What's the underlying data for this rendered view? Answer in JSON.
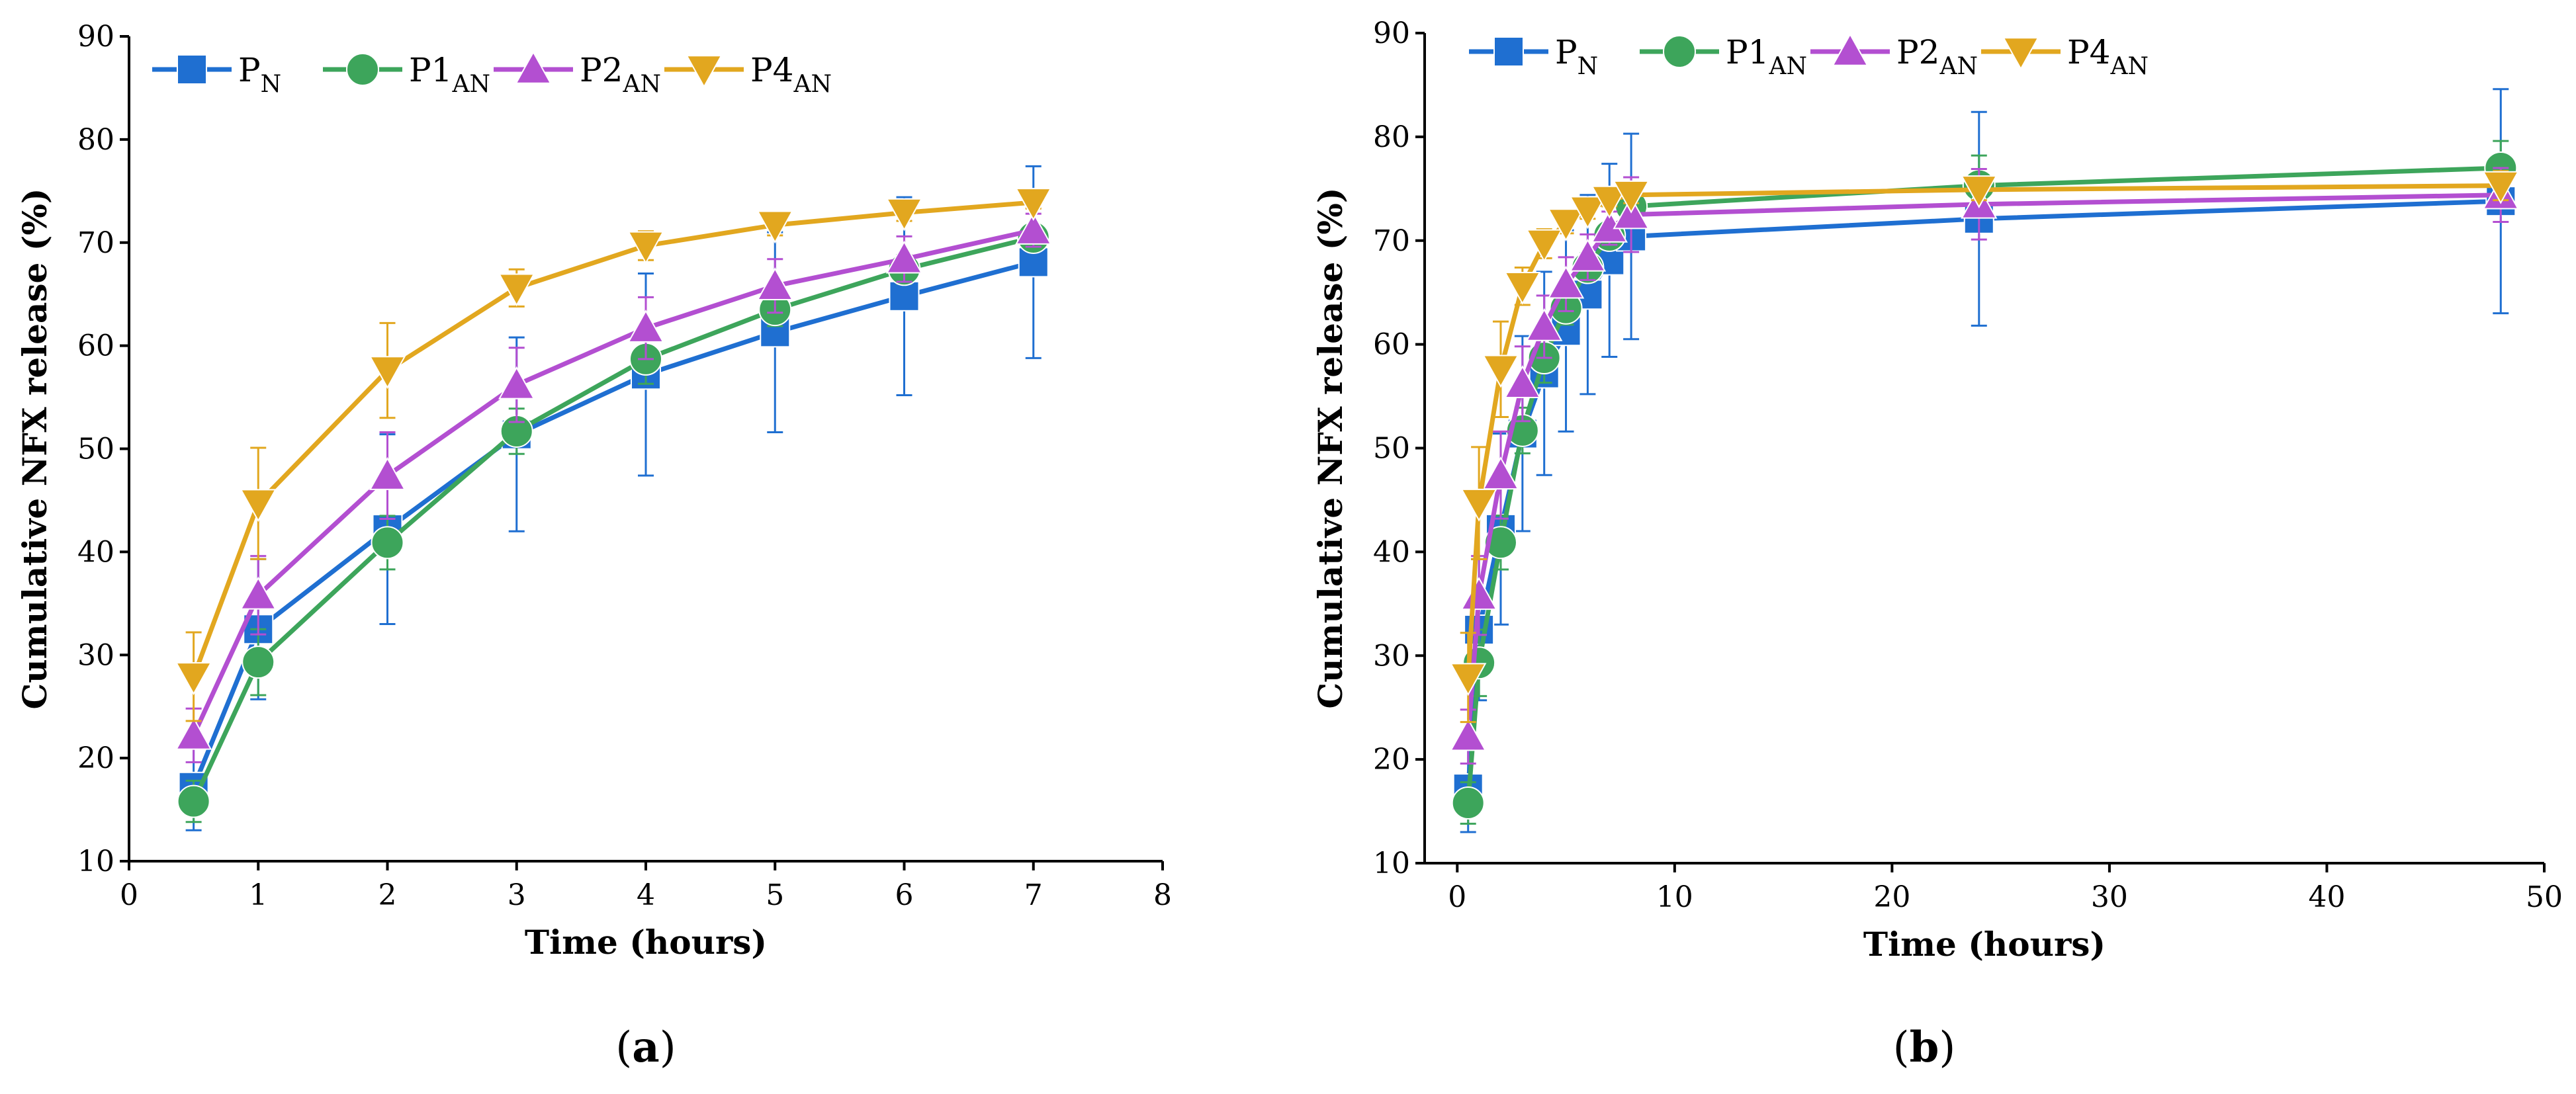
{
  "chart_data": [
    {
      "type": "line",
      "panel": "a",
      "panel_label": "(a)",
      "xlabel": "Time (hours)",
      "ylabel": "Cumulative NFX release (%)",
      "xlim": [
        0,
        8
      ],
      "ylim": [
        10,
        90
      ],
      "xticks": [
        0,
        1,
        2,
        3,
        4,
        5,
        6,
        7,
        8
      ],
      "yticks": [
        10,
        20,
        30,
        40,
        50,
        60,
        70,
        80,
        90
      ],
      "x": [
        0.5,
        1,
        2,
        3,
        4,
        5,
        6,
        7
      ],
      "legend_position": "top-left",
      "series": [
        {
          "name": "P",
          "sub": "N",
          "color": "#1f6fd1",
          "marker": "square",
          "values": [
            17.2,
            32.5,
            42.2,
            51.4,
            57.2,
            61.3,
            64.8,
            68.1
          ],
          "errors": [
            4.2,
            6.8,
            9.2,
            9.4,
            9.8,
            9.7,
            9.6,
            9.3
          ]
        },
        {
          "name": "P1",
          "sub": "AN",
          "color": "#3da55b",
          "marker": "circle",
          "values": [
            15.8,
            29.3,
            40.9,
            51.7,
            58.7,
            63.5,
            67.4,
            70.5
          ],
          "errors": [
            2.0,
            3.2,
            2.6,
            2.2,
            2.4,
            1.6,
            1.4,
            1.0
          ]
        },
        {
          "name": "P2",
          "sub": "AN",
          "color": "#b34fd1",
          "marker": "triangle-up",
          "values": [
            22.2,
            35.8,
            47.4,
            56.2,
            61.7,
            65.8,
            68.4,
            71.2
          ],
          "errors": [
            2.6,
            3.8,
            4.2,
            3.6,
            3.0,
            2.6,
            2.2,
            1.6
          ]
        },
        {
          "name": "P4",
          "sub": "AN",
          "color": "#e2a71f",
          "marker": "triangle-down",
          "values": [
            27.9,
            44.7,
            57.6,
            65.6,
            69.7,
            71.7,
            72.9,
            73.9
          ],
          "errors": [
            4.3,
            5.4,
            4.6,
            1.8,
            1.4,
            1.0,
            0.8,
            0.6
          ]
        }
      ]
    },
    {
      "type": "line",
      "panel": "b",
      "panel_label": "(b)",
      "xlabel": "Time (hours)",
      "ylabel": "Cumulative NFX release (%)",
      "xlim": [
        -1.5,
        50
      ],
      "ylim": [
        10,
        90
      ],
      "xticks": [
        0,
        10,
        20,
        30,
        40,
        50
      ],
      "yticks": [
        10,
        20,
        30,
        40,
        50,
        60,
        70,
        80,
        90
      ],
      "x": [
        0.5,
        1,
        2,
        3,
        4,
        5,
        6,
        7,
        8,
        24,
        48
      ],
      "legend_position": "top-left",
      "series": [
        {
          "name": "P",
          "sub": "N",
          "color": "#1f6fd1",
          "marker": "square",
          "values": [
            17.2,
            32.5,
            42.2,
            51.4,
            57.2,
            61.3,
            64.8,
            68.1,
            70.4,
            72.1,
            73.8
          ],
          "errors": [
            4.2,
            6.8,
            9.2,
            9.4,
            9.8,
            9.7,
            9.6,
            9.3,
            9.9,
            10.3,
            10.8
          ]
        },
        {
          "name": "P1",
          "sub": "AN",
          "color": "#3da55b",
          "marker": "circle",
          "values": [
            15.8,
            29.3,
            40.9,
            51.7,
            58.7,
            63.5,
            67.4,
            70.5,
            73.3,
            75.3,
            77.0
          ],
          "errors": [
            2.0,
            3.2,
            2.6,
            2.2,
            2.4,
            1.6,
            1.4,
            1.0,
            1.2,
            2.9,
            2.6
          ]
        },
        {
          "name": "P2",
          "sub": "AN",
          "color": "#b34fd1",
          "marker": "triangle-up",
          "values": [
            22.2,
            35.8,
            47.4,
            56.2,
            61.7,
            65.8,
            68.4,
            71.2,
            72.5,
            73.5,
            74.4
          ],
          "errors": [
            2.6,
            3.8,
            4.2,
            3.6,
            3.0,
            2.6,
            2.2,
            1.6,
            3.6,
            3.4,
            2.6
          ]
        },
        {
          "name": "P4",
          "sub": "AN",
          "color": "#e2a71f",
          "marker": "triangle-down",
          "values": [
            27.9,
            44.7,
            57.6,
            65.6,
            69.7,
            71.7,
            72.9,
            73.9,
            74.4,
            74.9,
            75.3
          ],
          "errors": [
            4.3,
            5.4,
            4.6,
            1.8,
            1.4,
            1.0,
            0.8,
            0.6,
            0.8,
            1.0,
            1.4
          ]
        }
      ]
    }
  ]
}
